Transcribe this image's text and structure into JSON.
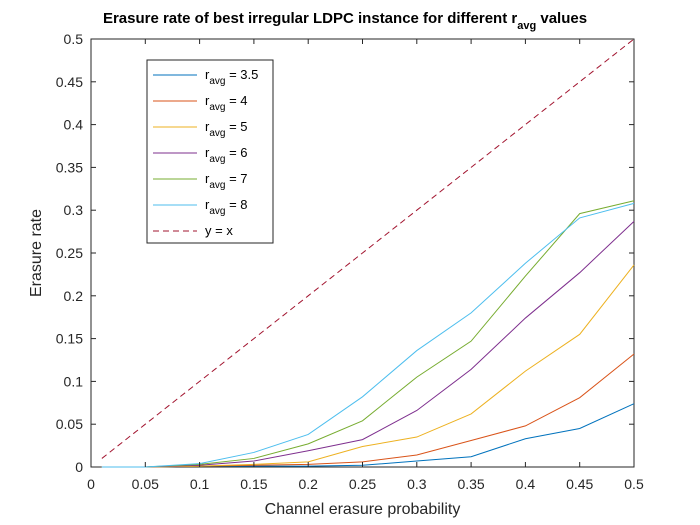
{
  "chart_data": {
    "type": "line",
    "title": {
      "main": "Erasure rate of best irregular LDPC instance for different r",
      "sub": "avg",
      "tail": " values"
    },
    "xlabel": "Channel erasure probability",
    "ylabel": "Erasure rate",
    "xlim": [
      0,
      0.5
    ],
    "ylim": [
      0,
      0.5
    ],
    "xticks": [
      "0",
      "0.05",
      "0.1",
      "0.15",
      "0.2",
      "0.25",
      "0.3",
      "0.35",
      "0.4",
      "0.45",
      "0.5"
    ],
    "yticks": [
      "0",
      "0.05",
      "0.1",
      "0.15",
      "0.2",
      "0.25",
      "0.3",
      "0.35",
      "0.4",
      "0.45",
      "0.5"
    ],
    "grid": false,
    "legend_position": "top-left",
    "x": [
      0.01,
      0.05,
      0.1,
      0.15,
      0.2,
      0.25,
      0.3,
      0.35,
      0.4,
      0.45,
      0.5
    ],
    "series": [
      {
        "name": "r",
        "sub": "avg",
        "value_label": " = 3.5",
        "color": "#0072BD",
        "dash": false,
        "values": [
          0,
          0,
          0.001,
          0.001,
          0.001,
          0.002,
          0.007,
          0.012,
          0.033,
          0.045,
          0.074
        ]
      },
      {
        "name": "r",
        "sub": "avg",
        "value_label": " = 4",
        "color": "#D95319",
        "dash": false,
        "values": [
          0,
          0,
          0.001,
          0.002,
          0.003,
          0.006,
          0.014,
          0.031,
          0.048,
          0.081,
          0.132
        ]
      },
      {
        "name": "r",
        "sub": "avg",
        "value_label": " = 5",
        "color": "#EDB120",
        "dash": false,
        "values": [
          0,
          0,
          0.001,
          0.003,
          0.006,
          0.024,
          0.035,
          0.062,
          0.112,
          0.155,
          0.236
        ]
      },
      {
        "name": "r",
        "sub": "avg",
        "value_label": " = 6",
        "color": "#7E2F8E",
        "dash": false,
        "values": [
          0,
          0,
          0.002,
          0.007,
          0.019,
          0.032,
          0.066,
          0.114,
          0.174,
          0.227,
          0.287
        ]
      },
      {
        "name": "r",
        "sub": "avg",
        "value_label": " = 7",
        "color": "#77AC30",
        "dash": false,
        "values": [
          0,
          0,
          0.003,
          0.01,
          0.027,
          0.054,
          0.105,
          0.147,
          0.223,
          0.296,
          0.311
        ]
      },
      {
        "name": "r",
        "sub": "avg",
        "value_label": " = 8",
        "color": "#4DBEEE",
        "dash": false,
        "values": [
          0,
          0,
          0.004,
          0.017,
          0.038,
          0.082,
          0.136,
          0.18,
          0.238,
          0.291,
          0.308
        ]
      },
      {
        "name": "y = x",
        "sub": "",
        "value_label": "",
        "color": "#A2142F",
        "dash": true,
        "values": [
          0.01,
          0.05,
          0.1,
          0.15,
          0.2,
          0.25,
          0.3,
          0.35,
          0.4,
          0.45,
          0.5
        ]
      }
    ]
  }
}
